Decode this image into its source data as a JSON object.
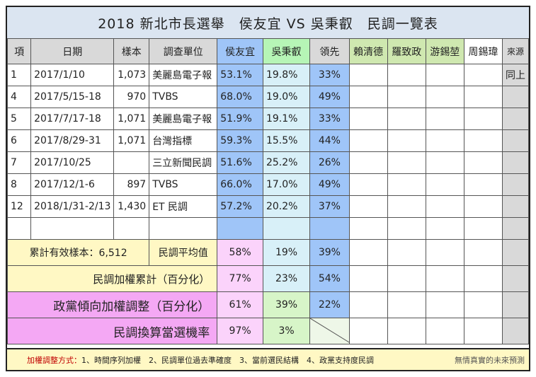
{
  "title": "2018  新北市長選舉　侯友宜 VS 吳秉叡　民調一覽表",
  "headers": [
    "項",
    "日期",
    "樣本",
    "調查單位",
    "侯友宜",
    "吳秉叡",
    "領先",
    "賴清德",
    "羅致政",
    "游錫堃",
    "周錫瑋",
    "來源"
  ],
  "rows": [
    {
      "no": "1",
      "date": "2017/1/10",
      "sample": "1,073",
      "unit": "美麗島電子報",
      "hou": "53.1%",
      "wu": "19.8%",
      "lead": "33%",
      "src": "同上"
    },
    {
      "no": "4",
      "date": "2017/5/15-18",
      "sample": "970",
      "unit": "TVBS",
      "hou": "68.0%",
      "wu": "19.0%",
      "lead": "49%",
      "src": ""
    },
    {
      "no": "5",
      "date": "2017/7/17-18",
      "sample": "1,071",
      "unit": "美麗島電子報",
      "hou": "51.9%",
      "wu": "19.1%",
      "lead": "33%",
      "src": ""
    },
    {
      "no": "6",
      "date": "2017/8/29-31",
      "sample": "1,071",
      "unit": "台灣指標",
      "hou": "59.3%",
      "wu": "15.5%",
      "lead": "44%",
      "src": ""
    },
    {
      "no": "7",
      "date": "2017/10/25",
      "sample": "",
      "unit": "三立新聞民調",
      "hou": "51.6%",
      "wu": "25.2%",
      "lead": "26%",
      "src": ""
    },
    {
      "no": "8",
      "date": "2017/12/1-6",
      "sample": "897",
      "unit": "TVBS",
      "hou": "66.0%",
      "wu": "17.0%",
      "lead": "49%",
      "src": ""
    },
    {
      "no": "12",
      "date": "2018/1/31-2/13",
      "sample": "1,430",
      "unit": "ET 民調",
      "hou": "57.2%",
      "wu": "20.2%",
      "lead": "37%",
      "src": ""
    },
    {
      "no": "",
      "date": "",
      "sample": "",
      "unit": "",
      "hou": "",
      "wu": "",
      "lead": "",
      "src": ""
    }
  ],
  "summary": {
    "total_label": "累計有效樣本：",
    "total_value": "6,512",
    "avg_label": "民調平均值",
    "avg_hou": "58%",
    "avg_wu": "19%",
    "avg_lead": "39%",
    "weighted_label": "民調加權累計（百分化）",
    "weighted_hou": "77%",
    "weighted_wu": "23%",
    "weighted_lead": "54%",
    "party_label": "政黨傾向加權調整（百分化）",
    "party_hou": "61%",
    "party_wu": "39%",
    "party_lead": "22%",
    "prob_label": "民調換算當選機率",
    "prob_hou": "97%",
    "prob_wu": "3%"
  },
  "footer": {
    "label": "加權調整方式：",
    "methods": "1、時間序列加權　2、民調單位過去準確度　3、當前選民結構　4、政黨支持度民調",
    "note": "無情真實的未來預測"
  }
}
